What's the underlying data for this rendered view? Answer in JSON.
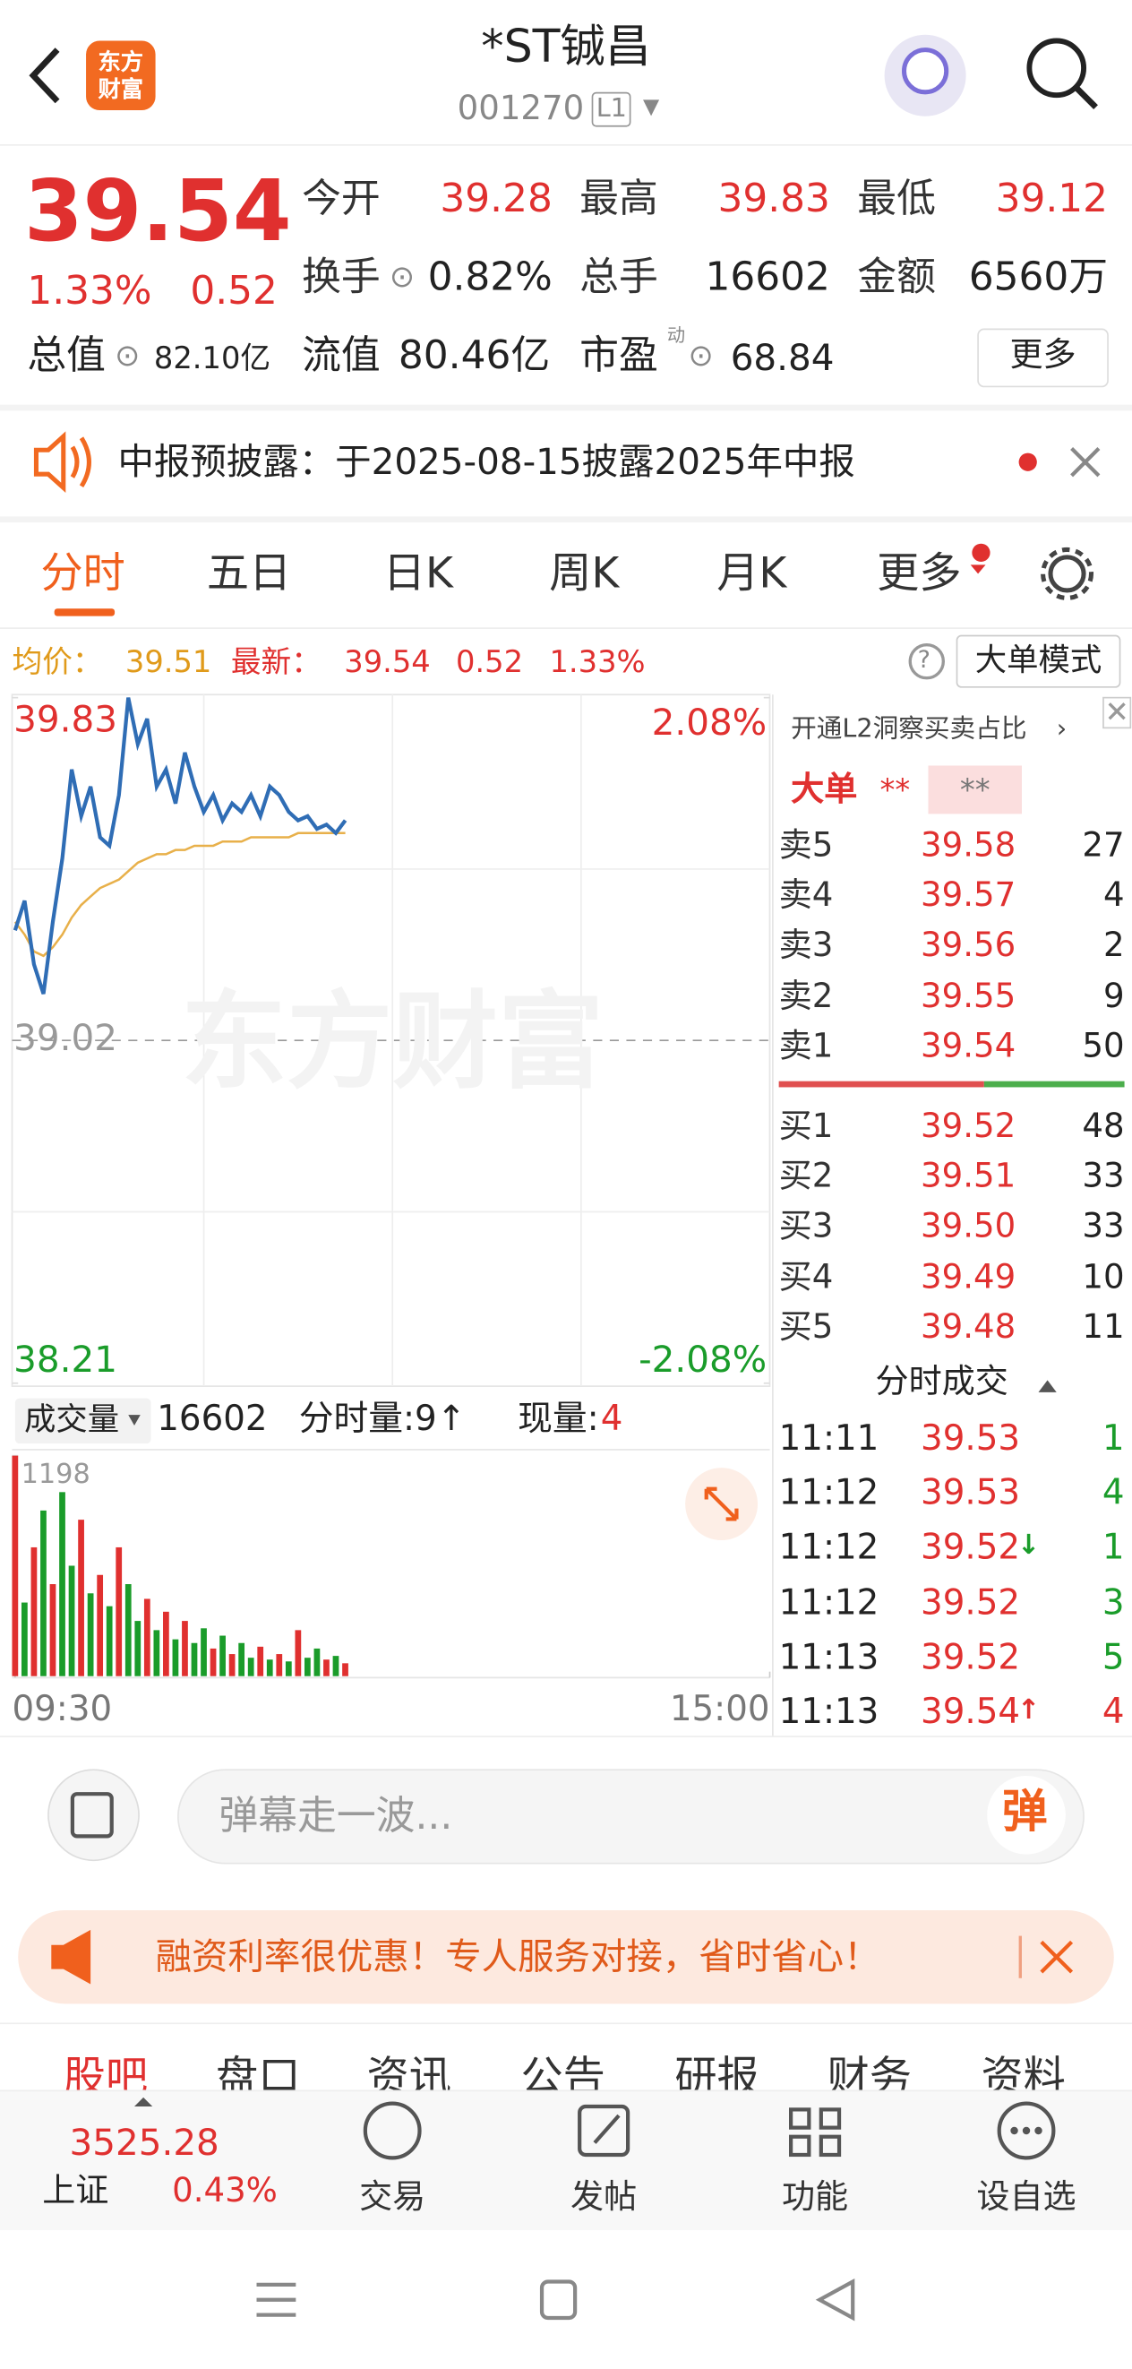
{
  "header": {
    "title": "*ST铖昌",
    "code": "001270",
    "level": "L1",
    "logo": [
      "东方",
      "财富"
    ]
  },
  "quote": {
    "price": "39.54",
    "change_pct": "1.33%",
    "change": "0.52",
    "row1": [
      [
        "今开",
        "39.28"
      ],
      [
        "最高",
        "39.83"
      ],
      [
        "最低",
        "39.12"
      ]
    ],
    "row2": [
      [
        "换手",
        "0.82%"
      ],
      [
        "总手",
        "16602"
      ],
      [
        "金额",
        "6560万"
      ]
    ],
    "total": [
      "总值",
      "82.10亿"
    ],
    "float": [
      "流值",
      "80.46亿"
    ],
    "pe": [
      "市盈",
      "动",
      "68.84"
    ],
    "more": "更多"
  },
  "notice": "中报预披露：于2025-08-15披露2025年中报",
  "tabs": [
    "分时",
    "五日",
    "日K",
    "周K",
    "月K",
    "更多"
  ],
  "info": {
    "avg_label": "均价：",
    "avg": "39.51",
    "last_label": "最新：",
    "last": "39.54",
    "change": "0.52",
    "pct": "1.33%",
    "mode": "大单模式"
  },
  "watermark": "东方财富",
  "volume_bar": {
    "label": "成交量",
    "total": "16602",
    "minute": "分时量:9↑",
    "now_label": "现量:",
    "now": "4"
  },
  "order_book": {
    "promo": "开通L2洞察买卖占比",
    "big": "大单",
    "big_a": "**",
    "big_b": "**",
    "asks": [
      [
        "卖5",
        "39.58",
        "27"
      ],
      [
        "卖4",
        "39.57",
        "4"
      ],
      [
        "卖3",
        "39.56",
        "2"
      ],
      [
        "卖2",
        "39.55",
        "9"
      ],
      [
        "卖1",
        "39.54",
        "50"
      ]
    ],
    "bids": [
      [
        "买1",
        "39.52",
        "48"
      ],
      [
        "买2",
        "39.51",
        "33"
      ],
      [
        "买3",
        "39.50",
        "33"
      ],
      [
        "买4",
        "39.49",
        "10"
      ],
      [
        "买5",
        "39.48",
        "11"
      ]
    ]
  },
  "trades": {
    "title": "分时成交",
    "rows": [
      {
        "time": "11:11",
        "price": "39.53",
        "vol": "1",
        "color": "#1a9c2a"
      },
      {
        "time": "11:12",
        "price": "39.53",
        "vol": "4",
        "color": "#1a9c2a"
      },
      {
        "time": "11:12",
        "price": "39.52",
        "arrow": "↓",
        "vol": "1",
        "color": "#1a9c2a"
      },
      {
        "time": "11:12",
        "price": "39.52",
        "vol": "3",
        "color": "#1a9c2a"
      },
      {
        "time": "11:13",
        "price": "39.52",
        "vol": "5",
        "color": "#1a9c2a"
      },
      {
        "time": "11:13",
        "price": "39.54",
        "arrow": "↑",
        "vol": "4",
        "color": "#e0302f"
      }
    ]
  },
  "danmu": {
    "placeholder": "弹幕走一波...",
    "button": "弹"
  },
  "ad": "融资利率很优惠！专人服务对接，省时省心！",
  "subtabs": [
    "股吧",
    "盘口",
    "资讯",
    "公告",
    "研报",
    "财务",
    "资料"
  ],
  "nav": {
    "index_value": "3525.28",
    "index_name": "上证",
    "index_pct": "0.43%",
    "items": [
      "交易",
      "发帖",
      "功能",
      "设自选"
    ]
  },
  "chart_data": [
    {
      "type": "line",
      "x": [
        0,
        3,
        6,
        9,
        12,
        15,
        18,
        21,
        24,
        27,
        30,
        33,
        36,
        39,
        42,
        45,
        48,
        51,
        54,
        57,
        60,
        63,
        66,
        69,
        72,
        75,
        78,
        81,
        84,
        87,
        90,
        93,
        96,
        99,
        102,
        105
      ],
      "xlim": [
        0,
        240
      ],
      "xticks": [
        {
          "value": 0,
          "label": "09:30"
        },
        {
          "value": 240,
          "label": "15:00"
        }
      ],
      "ylim": [
        38.21,
        39.83
      ],
      "yticks": [
        39.83,
        39.02,
        38.21
      ],
      "y2lim": [
        -2.08,
        2.08
      ],
      "y2ticks": [
        {
          "value": 2.08,
          "label": "2.08%"
        },
        {
          "value": -2.08,
          "label": "-2.08%"
        }
      ],
      "series": [
        {
          "color": "#2f6db5",
          "values": [
            39.28,
            39.35,
            39.2,
            39.13,
            39.3,
            39.45,
            39.66,
            39.55,
            39.62,
            39.5,
            39.48,
            39.6,
            39.83,
            39.72,
            39.78,
            39.62,
            39.66,
            39.58,
            39.7,
            39.62,
            39.56,
            39.6,
            39.54,
            39.58,
            39.56,
            39.6,
            39.55,
            39.62,
            39.6,
            39.56,
            39.54,
            39.55,
            39.52,
            39.53,
            39.51,
            39.54
          ]
        },
        {
          "color": "#e8b04a",
          "values": [
            39.3,
            39.27,
            39.23,
            39.22,
            39.24,
            39.27,
            39.31,
            39.34,
            39.36,
            39.38,
            39.39,
            39.4,
            39.42,
            39.44,
            39.45,
            39.46,
            39.46,
            39.47,
            39.47,
            39.48,
            39.48,
            39.48,
            39.49,
            39.49,
            39.49,
            39.5,
            39.5,
            39.5,
            39.5,
            39.5,
            39.51,
            39.51,
            39.51,
            39.51,
            39.51,
            39.51
          ]
        }
      ]
    },
    {
      "type": "bar",
      "x": [
        0,
        3,
        6,
        9,
        12,
        15,
        18,
        21,
        24,
        27,
        30,
        33,
        36,
        39,
        42,
        45,
        48,
        51,
        54,
        57,
        60,
        63,
        66,
        69,
        72,
        75,
        78,
        81,
        84,
        87,
        90,
        93,
        96,
        99,
        102,
        105
      ],
      "ylim": [
        0,
        1198
      ],
      "yticks": [
        1198
      ],
      "values": [
        1198,
        400,
        700,
        900,
        500,
        1000,
        600,
        850,
        450,
        550,
        380,
        700,
        500,
        300,
        420,
        250,
        350,
        200,
        300,
        180,
        260,
        150,
        220,
        120,
        180,
        100,
        160,
        90,
        120,
        80,
        250,
        100,
        150,
        90,
        110,
        70
      ],
      "colors": [
        "#e0302f",
        "#1a9c2a",
        "#e0302f",
        "#1a9c2a",
        "#e0302f",
        "#1a9c2a",
        "#1a9c2a",
        "#e0302f",
        "#1a9c2a",
        "#e0302f",
        "#1a9c2a",
        "#e0302f",
        "#1a9c2a",
        "#1a9c2a",
        "#e0302f",
        "#1a9c2a",
        "#e0302f",
        "#1a9c2a",
        "#e0302f",
        "#1a9c2a",
        "#1a9c2a",
        "#e0302f",
        "#1a9c2a",
        "#e0302f",
        "#1a9c2a",
        "#1a9c2a",
        "#e0302f",
        "#1a9c2a",
        "#e0302f",
        "#1a9c2a",
        "#e0302f",
        "#1a9c2a",
        "#1a9c2a",
        "#e0302f",
        "#1a9c2a",
        "#e0302f"
      ]
    }
  ]
}
